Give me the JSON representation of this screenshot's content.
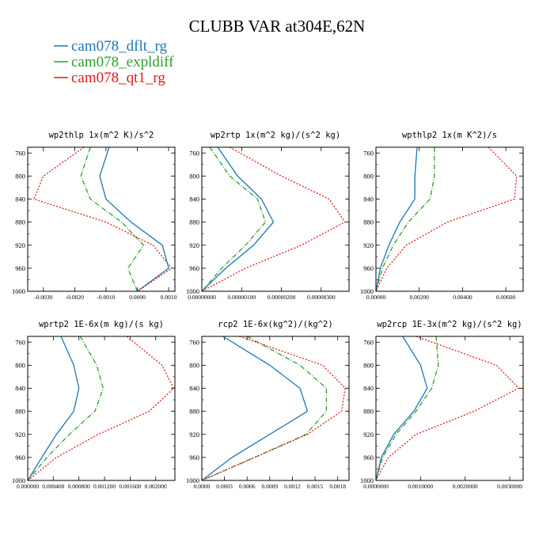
{
  "figure": {
    "title": "CLUBB VAR at304E,62N"
  },
  "legend": [
    {
      "name": "cam078_dflt_rg",
      "color": "#1f77b4",
      "dash": "solid"
    },
    {
      "name": "cam078_expldiff",
      "color": "#2ca02c",
      "dash": "dashdot"
    },
    {
      "name": "cam078_qt1_rg",
      "color": "#e31a1c",
      "dash": "dotted"
    }
  ],
  "colors": {
    "cam078_dflt_rg": "#1f77b4",
    "cam078_expldiff": "#2ca02c",
    "cam078_qt1_rg": "#e31a1c"
  },
  "chart_data": [
    {
      "type": "line",
      "title": "wp2thlp  1x(m^2 K)/s^2",
      "y": [
        750,
        800,
        840,
        880,
        920,
        960,
        1000
      ],
      "ylim": [
        1000,
        750
      ],
      "xlim": [
        -0.0035,
        0.0012
      ],
      "yticks": [
        "760",
        "800",
        "840",
        "880",
        "920",
        "960",
        "1000"
      ],
      "xticks": [
        "-0.0030",
        "-0.0020",
        "-0.0010",
        "0.0000",
        "0.0010"
      ],
      "xtick_values": [
        -0.003,
        -0.002,
        -0.001,
        0.0,
        0.001
      ],
      "series": [
        {
          "name": "cam078_dflt_rg",
          "x": [
            -0.0009,
            -0.0012,
            -0.001,
            -0.0002,
            0.0008,
            0.001,
            0.0
          ]
        },
        {
          "name": "cam078_expldiff",
          "x": [
            -0.0015,
            -0.0018,
            -0.0015,
            -0.0005,
            0.0002,
            -0.0003,
            0.0
          ]
        },
        {
          "name": "cam078_qt1_rg",
          "x": [
            -0.0017,
            -0.003,
            -0.0033,
            -0.001,
            0.0005,
            0.0011,
            0.0
          ]
        }
      ]
    },
    {
      "type": "line",
      "title": "wp2rtp  1x(m^2 kg)/(s^2 kg)",
      "y": [
        750,
        800,
        840,
        880,
        920,
        960,
        1000
      ],
      "ylim": [
        1000,
        750
      ],
      "xlim": [
        0.0,
        3.7e-06
      ],
      "yticks": [
        "760",
        "800",
        "840",
        "880",
        "920",
        "960",
        "1000"
      ],
      "xticks": [
        "0.00000000",
        "0.00000100",
        "0.00000200",
        "0.00000300"
      ],
      "xtick_values": [
        0.0,
        1e-06,
        2e-06,
        3e-06
      ],
      "series": [
        {
          "name": "cam078_dflt_rg",
          "x": [
            4e-07,
            9e-07,
            1.5e-06,
            1.8e-06,
            1.3e-06,
            6e-07,
            0.0
          ]
        },
        {
          "name": "cam078_expldiff",
          "x": [
            2e-07,
            7e-07,
            1.4e-06,
            1.6e-06,
            1.1e-06,
            5e-07,
            0.0
          ]
        },
        {
          "name": "cam078_qt1_rg",
          "x": [
            7e-07,
            2e-06,
            3.2e-06,
            3.6e-06,
            2.5e-06,
            1.1e-06,
            0.0
          ]
        }
      ]
    },
    {
      "type": "line",
      "title": "wpthlp2  1x(m K^2)/s",
      "y": [
        750,
        800,
        840,
        880,
        920,
        960,
        1000
      ],
      "ylim": [
        1000,
        750
      ],
      "xlim": [
        0.0,
        0.0068
      ],
      "yticks": [
        "760",
        "800",
        "840",
        "880",
        "920",
        "960",
        "1000"
      ],
      "xticks": [
        "0.00000",
        "0.00200",
        "0.00400",
        "0.00600"
      ],
      "xtick_values": [
        0.0,
        0.002,
        0.004,
        0.006
      ],
      "series": [
        {
          "name": "cam078_dflt_rg",
          "x": [
            0.0019,
            0.0018,
            0.0018,
            0.0011,
            0.0006,
            0.0002,
            0.0
          ]
        },
        {
          "name": "cam078_expldiff",
          "x": [
            0.0027,
            0.0027,
            0.0025,
            0.0015,
            0.0008,
            0.0003,
            0.0
          ]
        },
        {
          "name": "cam078_qt1_rg",
          "x": [
            0.0052,
            0.0065,
            0.0064,
            0.0033,
            0.0014,
            0.0005,
            0.0
          ]
        }
      ]
    },
    {
      "type": "line",
      "title": "wprtp2  1E-6x(m kg)/(s kg)",
      "y": [
        750,
        800,
        840,
        880,
        920,
        960,
        1000
      ],
      "ylim": [
        1000,
        750
      ],
      "xlim": [
        0.0,
        0.0023
      ],
      "yticks": [
        "760",
        "800",
        "840",
        "880",
        "920",
        "960",
        "1000"
      ],
      "xticks": [
        "0.000000",
        "0.000400",
        "0.000800",
        "0.001200",
        "0.001600",
        "0.002000"
      ],
      "xtick_values": [
        0.0,
        0.0004,
        0.0008,
        0.0012,
        0.0016,
        0.002
      ],
      "series": [
        {
          "name": "cam078_dflt_rg",
          "x": [
            0.00052,
            0.00072,
            0.0008,
            0.00072,
            0.00045,
            0.00022,
            0.0
          ]
        },
        {
          "name": "cam078_expldiff",
          "x": [
            0.00082,
            0.00108,
            0.00118,
            0.00105,
            0.00065,
            0.0003,
            0.0
          ]
        },
        {
          "name": "cam078_qt1_rg",
          "x": [
            0.00155,
            0.0021,
            0.00228,
            0.0019,
            0.0011,
            0.00045,
            0.0
          ]
        }
      ]
    },
    {
      "type": "line",
      "title": "rcp2  1E-6x(kg^2)/(kg^2)",
      "y": [
        750,
        800,
        840,
        880,
        920,
        960,
        1000
      ],
      "ylim": [
        1000,
        750
      ],
      "xlim": [
        0.0,
        0.00195
      ],
      "yticks": [
        "760",
        "800",
        "840",
        "880",
        "920",
        "960",
        "1000"
      ],
      "xticks": [
        "0.0000",
        "0.0003",
        "0.0006",
        "0.0009",
        "0.0012",
        "0.0015",
        "0.0018"
      ],
      "xtick_values": [
        0.0,
        0.0003,
        0.0006,
        0.0009,
        0.0012,
        0.0015,
        0.0018
      ],
      "series": [
        {
          "name": "cam078_dflt_rg",
          "x": [
            0.00028,
            0.0009,
            0.0013,
            0.0014,
            0.0009,
            0.0004,
            0.0
          ]
        },
        {
          "name": "cam078_expldiff",
          "x": [
            0.0006,
            0.0013,
            0.00165,
            0.00165,
            0.00138,
            0.0007,
            0.0
          ]
        },
        {
          "name": "cam078_qt1_rg",
          "x": [
            0.0005,
            0.0016,
            0.0019,
            0.00185,
            0.0014,
            0.0007,
            0.0
          ]
        }
      ]
    },
    {
      "type": "line",
      "title": "wp2rcp  1E-3x(m^2 kg)/(s^2 kg)",
      "y": [
        750,
        800,
        840,
        880,
        920,
        960,
        1000
      ],
      "ylim": [
        1000,
        750
      ],
      "xlim": [
        0.0,
        0.0033
      ],
      "yticks": [
        "760",
        "800",
        "840",
        "880",
        "920",
        "960",
        "1000"
      ],
      "xticks": [
        "0.0000000",
        "0.0010000",
        "0.0020000",
        "0.0030000"
      ],
      "xtick_values": [
        0.0,
        0.001,
        0.002,
        0.003
      ],
      "series": [
        {
          "name": "cam078_dflt_rg",
          "x": [
            0.0006,
            0.001,
            0.00115,
            0.00085,
            0.0004,
            0.00012,
            0.0
          ]
        },
        {
          "name": "cam078_expldiff",
          "x": [
            0.00135,
            0.0014,
            0.00125,
            0.0009,
            0.00045,
            0.00015,
            0.0
          ]
        },
        {
          "name": "cam078_qt1_rg",
          "x": [
            0.0009,
            0.0027,
            0.0032,
            0.0022,
            0.0009,
            0.00028,
            0.0
          ]
        }
      ]
    }
  ]
}
